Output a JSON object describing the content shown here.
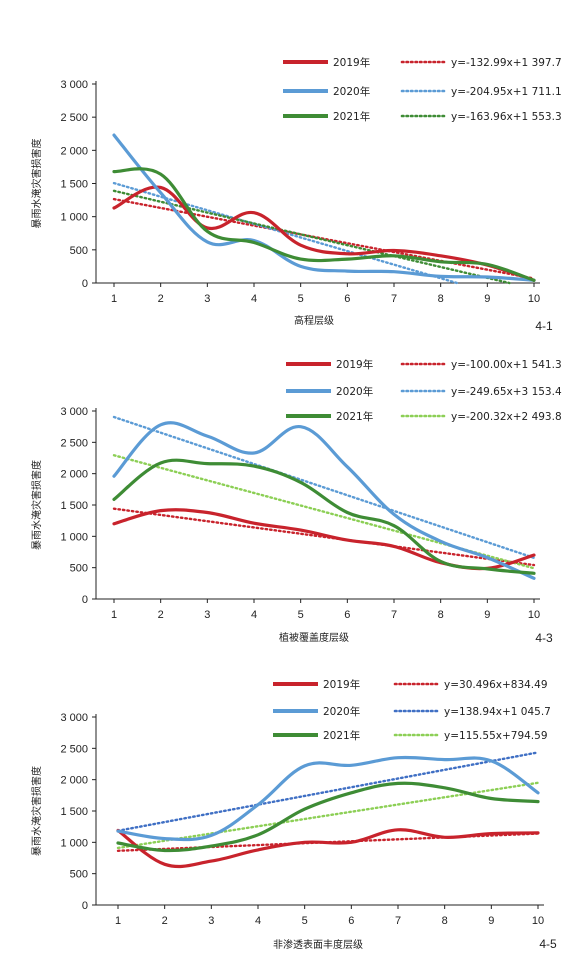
{
  "chart_data": [
    {
      "type": "line",
      "panel_label": "4-1",
      "xlabel": "高程层级",
      "ylabel": "暴雨水淹灾害损害度",
      "x": [
        1,
        2,
        3,
        4,
        5,
        6,
        7,
        8,
        9,
        10
      ],
      "ylim": [
        0,
        3000
      ],
      "y_ticks": [
        "0",
        "500",
        "1 000",
        "1 500",
        "2 000",
        "2 500",
        "3 000"
      ],
      "y_tick_values": [
        0,
        500,
        1000,
        1500,
        2000,
        2500,
        3000
      ],
      "grid": false,
      "legend_position": "top-right",
      "series": [
        {
          "name": "2019年",
          "color": "#c8232c",
          "values": [
            1130,
            1440,
            830,
            1060,
            570,
            440,
            490,
            410,
            270,
            40
          ]
        },
        {
          "name": "2020年",
          "color": "#5b9bd5",
          "values": [
            2230,
            1360,
            620,
            640,
            250,
            180,
            170,
            100,
            90,
            40
          ]
        },
        {
          "name": "2021年",
          "color": "#3e8c35",
          "values": [
            1680,
            1640,
            780,
            610,
            360,
            360,
            410,
            320,
            280,
            40
          ]
        }
      ],
      "trendlines": [
        {
          "series": "2019年",
          "color": "#c8232c",
          "slope": -132.99,
          "intercept": 1397.7,
          "equation": "y=-132.99x+1 397.7"
        },
        {
          "series": "2020年",
          "color": "#5b9bd5",
          "slope": -204.95,
          "intercept": 1711.1,
          "equation": "y=-204.95x+1 711.1"
        },
        {
          "series": "2021年",
          "color": "#3e8c35",
          "slope": -163.96,
          "intercept": 1553.3,
          "equation": "y=-163.96x+1 553.3"
        }
      ]
    },
    {
      "type": "line",
      "panel_label": "4-3",
      "xlabel": "植被覆盖度层级",
      "ylabel": "暴雨水淹灾害损害度",
      "x": [
        1,
        2,
        3,
        4,
        5,
        6,
        7,
        8,
        9,
        10
      ],
      "ylim": [
        0,
        3000
      ],
      "y_ticks": [
        "0",
        "500",
        "1 000",
        "1 500",
        "2 000",
        "2 500",
        "3 000"
      ],
      "y_tick_values": [
        0,
        500,
        1000,
        1500,
        2000,
        2500,
        3000
      ],
      "grid": false,
      "legend_position": "top-right",
      "series": [
        {
          "name": "2019年",
          "color": "#c8232c",
          "values": [
            1200,
            1410,
            1380,
            1210,
            1100,
            940,
            840,
            580,
            490,
            700
          ]
        },
        {
          "name": "2020年",
          "color": "#5b9bd5",
          "values": [
            1960,
            2780,
            2600,
            2330,
            2750,
            2110,
            1350,
            920,
            660,
            330
          ]
        },
        {
          "name": "2021年",
          "color": "#3e8c35",
          "values": [
            1590,
            2170,
            2160,
            2120,
            1860,
            1380,
            1170,
            600,
            480,
            410
          ]
        }
      ],
      "trendlines": [
        {
          "series": "2019年",
          "color": "#c8232c",
          "slope": -100.0,
          "intercept": 1541.3,
          "equation": "y=-100.00x+1 541.3"
        },
        {
          "series": "2020年",
          "color": "#5b9bd5",
          "slope": -249.65,
          "intercept": 3153.4,
          "equation": "y=-249.65x+3 153.4"
        },
        {
          "series": "2021年",
          "color": "#8ccf55",
          "slope": -200.32,
          "intercept": 2493.8,
          "equation": "y=-200.32x+2 493.8"
        }
      ]
    },
    {
      "type": "line",
      "panel_label": "4-5",
      "xlabel": "非渗透表面丰度层级",
      "ylabel": "暴雨水淹灾害损害度",
      "x": [
        1,
        2,
        3,
        4,
        5,
        6,
        7,
        8,
        9,
        10
      ],
      "ylim": [
        0,
        3000
      ],
      "y_ticks": [
        "0",
        "500",
        "1 000",
        "1 500",
        "2 000",
        "2 500",
        "3 000"
      ],
      "y_tick_values": [
        0,
        500,
        1000,
        1500,
        2000,
        2500,
        3000
      ],
      "grid": false,
      "legend_position": "top-right",
      "series": [
        {
          "name": "2019年",
          "color": "#c8232c",
          "values": [
            1190,
            650,
            700,
            880,
            1000,
            1000,
            1200,
            1080,
            1140,
            1150
          ]
        },
        {
          "name": "2020年",
          "color": "#5b9bd5",
          "values": [
            1180,
            1060,
            1110,
            1600,
            2220,
            2230,
            2350,
            2320,
            2300,
            1790
          ]
        },
        {
          "name": "2021年",
          "color": "#3e8c35",
          "values": [
            990,
            870,
            940,
            1120,
            1530,
            1790,
            1940,
            1870,
            1700,
            1650
          ]
        }
      ],
      "trendlines": [
        {
          "series": "2019年",
          "color": "#c8232c",
          "slope": 30.496,
          "intercept": 834.49,
          "equation": "y=30.496x+834.49"
        },
        {
          "series": "2020年",
          "color": "#3f6fc4",
          "slope": 138.94,
          "intercept": 1045.7,
          "equation": "y=138.94x+1 045.7"
        },
        {
          "series": "2021年",
          "color": "#8ccf55",
          "slope": 115.55,
          "intercept": 794.59,
          "equation": "y=115.55x+794.59"
        }
      ]
    }
  ]
}
